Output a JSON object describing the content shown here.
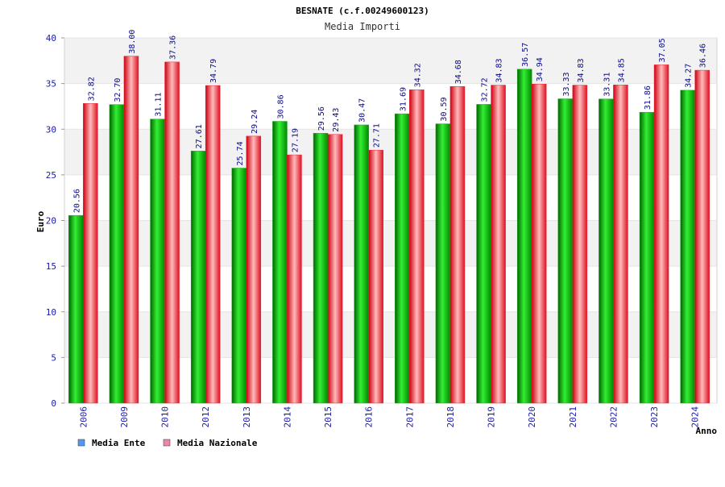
{
  "chart_data": {
    "type": "bar",
    "title": "BESNATE (c.f.00249600123)",
    "subtitle": "Media Importi",
    "xlabel": "Anno",
    "ylabel": "Euro",
    "ylim": [
      0,
      40
    ],
    "yticks": [
      "0",
      "5",
      "10",
      "15",
      "20",
      "25",
      "30",
      "35",
      "40"
    ],
    "grid": true,
    "legend_position": "bottom-left",
    "categories": [
      "2006",
      "2009",
      "2010",
      "2012",
      "2013",
      "2014",
      "2015",
      "2016",
      "2017",
      "2018",
      "2019",
      "2020",
      "2021",
      "2022",
      "2023",
      "2024"
    ],
    "series": [
      {
        "name": "Media Ente",
        "color": "#22aa22",
        "legend_color": "#5599ee",
        "values": [
          20.56,
          32.7,
          31.11,
          27.61,
          25.74,
          30.86,
          29.56,
          30.47,
          31.69,
          30.59,
          32.72,
          36.57,
          33.33,
          33.31,
          31.86,
          34.27
        ],
        "labels": [
          "20.56",
          "32.70",
          "31.11",
          "27.61",
          "25.74",
          "30.86",
          "29.56",
          "30.47",
          "31.69",
          "30.59",
          "32.72",
          "36.57",
          "33.33",
          "33.31",
          "31.86",
          "34.27"
        ]
      },
      {
        "name": "Media Nazionale",
        "color": "#ee2233",
        "legend_color": "#ee88aa",
        "values": [
          32.82,
          38.0,
          37.36,
          34.79,
          29.24,
          27.19,
          29.43,
          27.71,
          34.32,
          34.68,
          34.83,
          34.94,
          34.83,
          34.85,
          37.05,
          36.46
        ],
        "labels": [
          "32.82",
          "38.00",
          "37.36",
          "34.79",
          "29.24",
          "27.19",
          "29.43",
          "27.71",
          "34.32",
          "34.68",
          "34.83",
          "34.94",
          "34.83",
          "34.85",
          "37.05",
          "36.46"
        ]
      }
    ]
  }
}
